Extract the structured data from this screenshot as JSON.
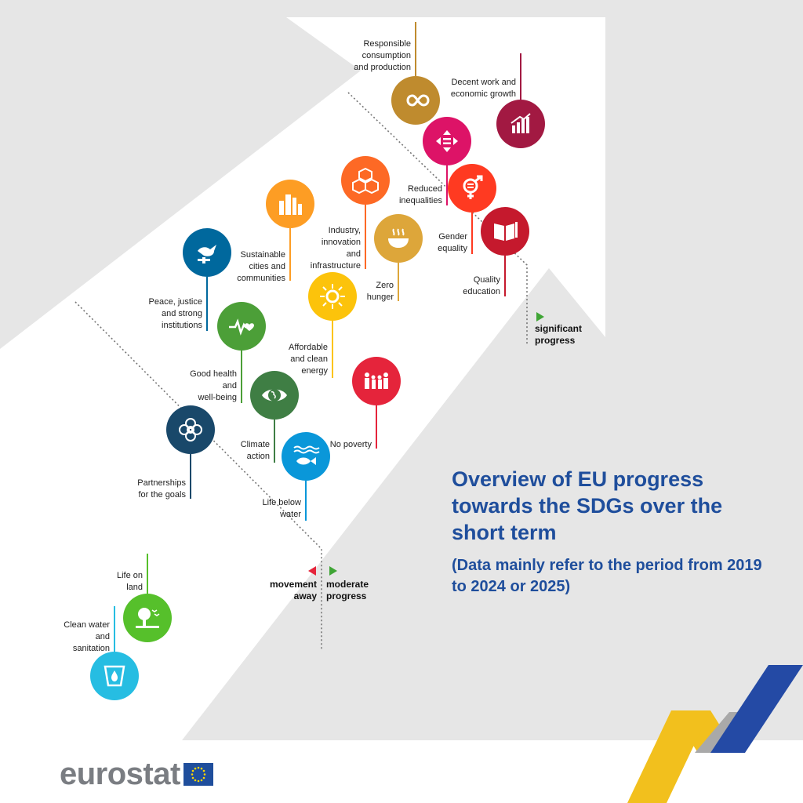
{
  "title": "Overview of EU progress towards the SDGs over the short term",
  "subtitle": "(Data mainly refer to the period from 2019 to 2024 or 2025)",
  "logo_text": "eurostat",
  "legend": {
    "significant": "significant\nprogress",
    "moderate": "moderate\nprogress",
    "away": "movement\naway"
  },
  "colors": {
    "significant_marker": "#3fa535",
    "moderate_marker": "#3fa535",
    "away_marker": "#e5243b",
    "title": "#1f4e9c",
    "band": "#e6e6e6"
  },
  "goals": [
    {
      "id": "12",
      "label": "Responsible\nconsumption\nand production",
      "color": "#bf8b2e",
      "icon": "infinity-icon"
    },
    {
      "id": "8",
      "label": "Decent work and\neconomic growth",
      "color": "#a21942",
      "icon": "growth-chart-icon"
    },
    {
      "id": "10",
      "label": "Reduced\ninequalities",
      "color": "#dd1367",
      "icon": "equality-arrows-icon"
    },
    {
      "id": "5",
      "label": "Gender\nequality",
      "color": "#ff3a21",
      "icon": "gender-symbol-icon"
    },
    {
      "id": "4",
      "label": "Quality\neducation",
      "color": "#c5192d",
      "icon": "book-pencil-icon"
    },
    {
      "id": "9",
      "label": "Industry,\ninnovation\nand\ninfrastructure",
      "color": "#fd6925",
      "icon": "cubes-icon"
    },
    {
      "id": "11",
      "label": "Sustainable\ncities and\ncommunities",
      "color": "#fd9d24",
      "icon": "city-buildings-icon"
    },
    {
      "id": "2",
      "label": "Zero\nhunger",
      "color": "#dda63a",
      "icon": "food-bowl-icon"
    },
    {
      "id": "16",
      "label": "Peace, justice\nand strong\ninstitutions",
      "color": "#00689d",
      "icon": "dove-gavel-icon"
    },
    {
      "id": "7",
      "label": "Affordable\nand clean\nenergy",
      "color": "#fcc30b",
      "icon": "sun-icon"
    },
    {
      "id": "3",
      "label": "Good health\nand\nwell-being",
      "color": "#4c9f38",
      "icon": "heartbeat-icon"
    },
    {
      "id": "1",
      "label": "No poverty",
      "color": "#e5243b",
      "icon": "family-icon"
    },
    {
      "id": "13",
      "label": "Climate\naction",
      "color": "#3f7e44",
      "icon": "earth-eye-icon"
    },
    {
      "id": "17",
      "label": "Partnerships\nfor the goals",
      "color": "#19486a",
      "icon": "rings-icon"
    },
    {
      "id": "14",
      "label": "Life below\nwater",
      "color": "#0a97d9",
      "icon": "fish-waves-icon"
    },
    {
      "id": "15",
      "label": "Life on\nland",
      "color": "#56c02b",
      "icon": "tree-birds-icon"
    },
    {
      "id": "6",
      "label": "Clean water\nand\nsanitation",
      "color": "#26bde2",
      "icon": "water-drop-icon"
    }
  ]
}
